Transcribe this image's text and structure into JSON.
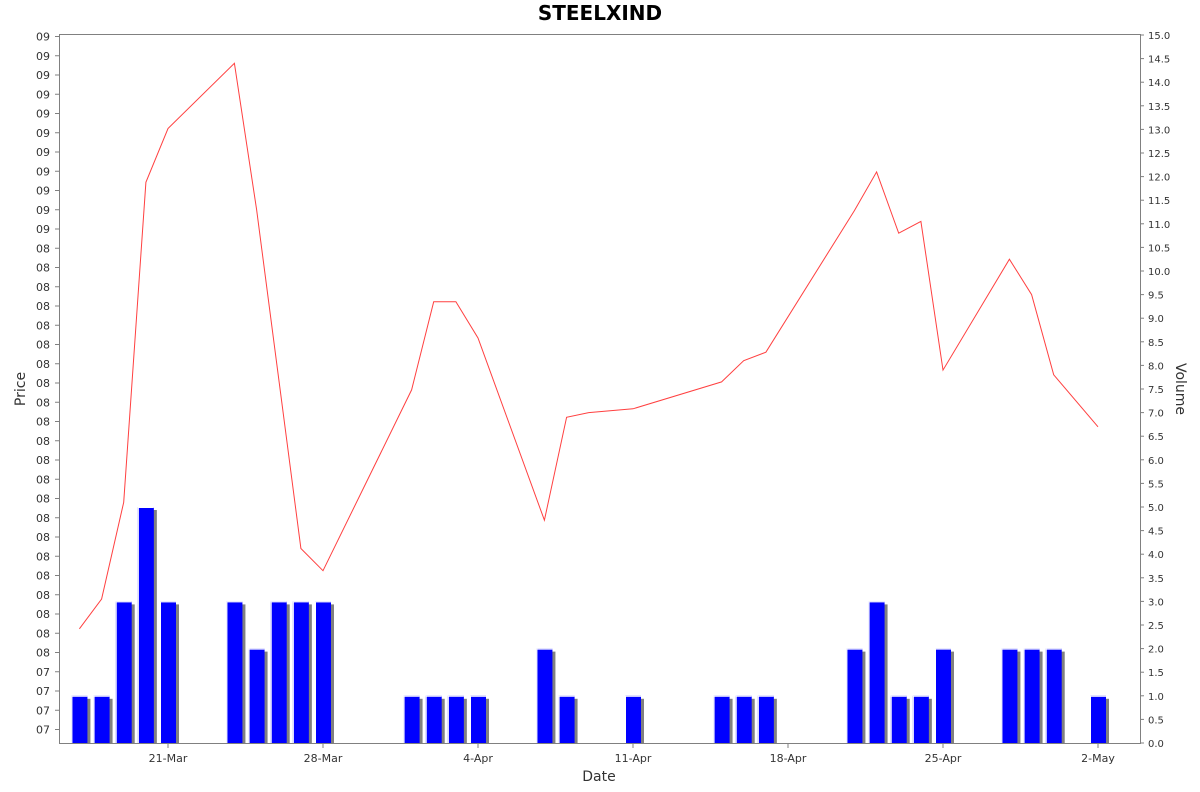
{
  "chart_data": {
    "type": "bar",
    "title": "STEELXIND",
    "xlabel": "Date",
    "ylabel_left": "Price",
    "ylabel_right": "Volume",
    "x_tick_labels": [
      "21-Mar",
      "28-Mar",
      "4-Apr",
      "11-Apr",
      "18-Apr",
      "25-Apr",
      "2-May"
    ],
    "left_tick_labels": [
      "09",
      "09",
      "09",
      "09",
      "09",
      "09",
      "09",
      "09",
      "09",
      "09",
      "09",
      "08",
      "08",
      "08",
      "08",
      "08",
      "08",
      "08",
      "08",
      "08",
      "08",
      "08",
      "08",
      "08",
      "08",
      "08",
      "08",
      "08",
      "08",
      "08",
      "08",
      "08",
      "08",
      "07",
      "07",
      "07",
      "07"
    ],
    "right_axis": {
      "min": 0.0,
      "max": 15.0,
      "step": 0.5
    },
    "volume_series": {
      "name": "Volume",
      "color": "#0000ff",
      "shadow_color": "#808080",
      "points": [
        {
          "date": "2024-03-17",
          "value": 1
        },
        {
          "date": "2024-03-18",
          "value": 1
        },
        {
          "date": "2024-03-19",
          "value": 3
        },
        {
          "date": "2024-03-20",
          "value": 5
        },
        {
          "date": "2024-03-21",
          "value": 3
        },
        {
          "date": "2024-03-24",
          "value": 3
        },
        {
          "date": "2024-03-25",
          "value": 2
        },
        {
          "date": "2024-03-26",
          "value": 3
        },
        {
          "date": "2024-03-27",
          "value": 3
        },
        {
          "date": "2024-03-28",
          "value": 3
        },
        {
          "date": "2024-04-01",
          "value": 1
        },
        {
          "date": "2024-04-02",
          "value": 1
        },
        {
          "date": "2024-04-03",
          "value": 1
        },
        {
          "date": "2024-04-04",
          "value": 1
        },
        {
          "date": "2024-04-07",
          "value": 2
        },
        {
          "date": "2024-04-08",
          "value": 1
        },
        {
          "date": "2024-04-11",
          "value": 1
        },
        {
          "date": "2024-04-15",
          "value": 1
        },
        {
          "date": "2024-04-16",
          "value": 1
        },
        {
          "date": "2024-04-17",
          "value": 1
        },
        {
          "date": "2024-04-21",
          "value": 2
        },
        {
          "date": "2024-04-22",
          "value": 3
        },
        {
          "date": "2024-04-23",
          "value": 1
        },
        {
          "date": "2024-04-24",
          "value": 1
        },
        {
          "date": "2024-04-25",
          "value": 2
        },
        {
          "date": "2024-04-28",
          "value": 2
        },
        {
          "date": "2024-04-29",
          "value": 2
        },
        {
          "date": "2024-04-30",
          "value": 2
        },
        {
          "date": "2024-05-02",
          "value": 1
        }
      ]
    },
    "price_series": {
      "name": "Price",
      "color": "#ff4040",
      "points": [
        {
          "date": "2024-03-17",
          "value": 2.42
        },
        {
          "date": "2024-03-18",
          "value": 3.05
        },
        {
          "date": "2024-03-19",
          "value": 5.1
        },
        {
          "date": "2024-03-20",
          "value": 11.88
        },
        {
          "date": "2024-03-21",
          "value": 13.02
        },
        {
          "date": "2024-03-24",
          "value": 14.4
        },
        {
          "date": "2024-03-25",
          "value": 11.3
        },
        {
          "date": "2024-03-27",
          "value": 4.12
        },
        {
          "date": "2024-03-28",
          "value": 3.65
        },
        {
          "date": "2024-04-01",
          "value": 7.48
        },
        {
          "date": "2024-04-02",
          "value": 9.35
        },
        {
          "date": "2024-04-03",
          "value": 9.35
        },
        {
          "date": "2024-04-04",
          "value": 8.58
        },
        {
          "date": "2024-04-07",
          "value": 4.72
        },
        {
          "date": "2024-04-08",
          "value": 6.9
        },
        {
          "date": "2024-04-09",
          "value": 7.0
        },
        {
          "date": "2024-04-11",
          "value": 7.08
        },
        {
          "date": "2024-04-15",
          "value": 7.65
        },
        {
          "date": "2024-04-16",
          "value": 8.1
        },
        {
          "date": "2024-04-17",
          "value": 8.28
        },
        {
          "date": "2024-04-21",
          "value": 11.28
        },
        {
          "date": "2024-04-22",
          "value": 12.1
        },
        {
          "date": "2024-04-23",
          "value": 10.8
        },
        {
          "date": "2024-04-24",
          "value": 11.05
        },
        {
          "date": "2024-04-25",
          "value": 7.9
        },
        {
          "date": "2024-04-28",
          "value": 10.25
        },
        {
          "date": "2024-04-29",
          "value": 9.5
        },
        {
          "date": "2024-04-30",
          "value": 7.8
        },
        {
          "date": "2024-05-02",
          "value": 6.7
        }
      ]
    },
    "grid": false,
    "legend": "none"
  }
}
